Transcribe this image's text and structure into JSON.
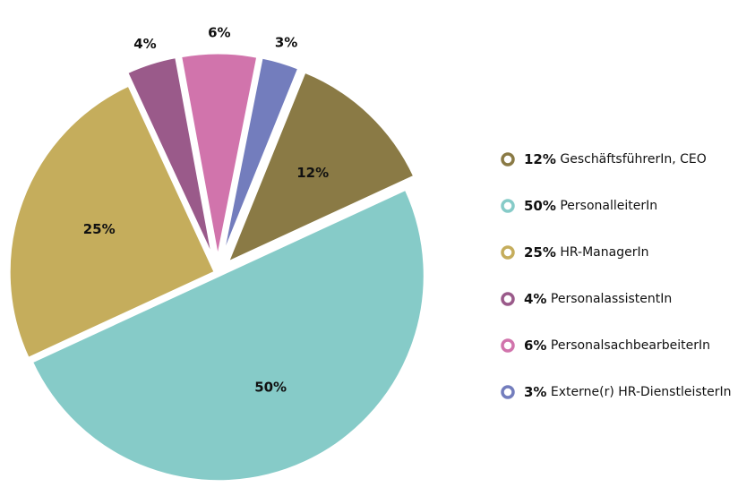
{
  "chart_data": {
    "type": "pie",
    "categories": [
      "GeschäftsführerIn, CEO",
      "PersonalleiterIn",
      "HR-ManagerIn",
      "PersonalassistentIn",
      "PersonalsachbearbeiterIn",
      "Externe(r) HR-DienstleisterIn"
    ],
    "values": [
      12,
      50,
      25,
      4,
      6,
      3
    ],
    "value_labels": [
      "12%",
      "50%",
      "25%",
      "4%",
      "6%",
      "3%"
    ],
    "colors": [
      "#8a7a45",
      "#86cbc8",
      "#c5ad5c",
      "#9a5a8a",
      "#d174ac",
      "#737dbd"
    ],
    "legend": "right"
  }
}
